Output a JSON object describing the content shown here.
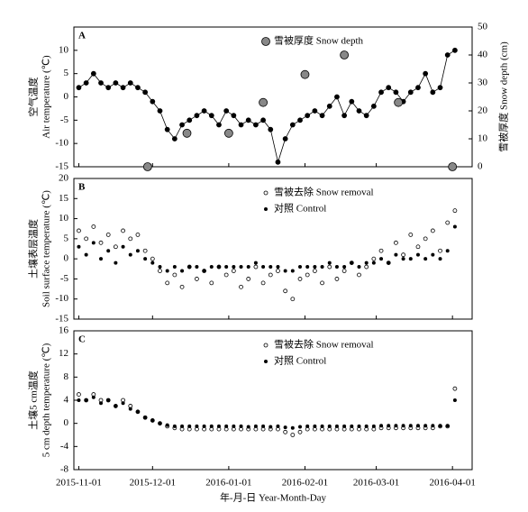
{
  "chart_data": [
    {
      "type": "line",
      "label": "A",
      "ylabel": [
        "空气温度",
        "Air temperature (℃)"
      ],
      "y2label": "雪被厚度 Snow depth (cm)",
      "xlim": [
        "2015-10-30",
        "2016-04-09"
      ],
      "xticks": [
        "2015-11-01",
        "2015-12-01",
        "2016-01-01",
        "2016-02-01",
        "2016-03-01",
        "2016-04-01"
      ],
      "ylim": [
        -15,
        15
      ],
      "yticks": [
        -15,
        -10,
        -5,
        0,
        5,
        10
      ],
      "y2lim": [
        0,
        50
      ],
      "y2ticks": [
        0,
        10,
        20,
        30,
        40,
        50
      ],
      "legend": "upper center",
      "series": [
        {
          "color": "#000000",
          "marker": "open",
          "line": true,
          "x": [
            "2015-11-01",
            "2015-11-04",
            "2015-11-07",
            "2015-11-10",
            "2015-11-13",
            "2015-11-16",
            "2015-11-19",
            "2015-11-22",
            "2015-11-25",
            "2015-11-28",
            "2015-12-01",
            "2015-12-04",
            "2015-12-07",
            "2015-12-10",
            "2015-12-13",
            "2015-12-16",
            "2015-12-19",
            "2015-12-22",
            "2015-12-25",
            "2015-12-28",
            "2015-12-31",
            "2016-01-03",
            "2016-01-06",
            "2016-01-09",
            "2016-01-12",
            "2016-01-15",
            "2016-01-18",
            "2016-01-21",
            "2016-01-24",
            "2016-01-27",
            "2016-01-30",
            "2016-02-02",
            "2016-02-05",
            "2016-02-08",
            "2016-02-11",
            "2016-02-14",
            "2016-02-17",
            "2016-02-20",
            "2016-02-23",
            "2016-02-26",
            "2016-02-29",
            "2016-03-03",
            "2016-03-06",
            "2016-03-09",
            "2016-03-12",
            "2016-03-15",
            "2016-03-18",
            "2016-03-21",
            "2016-03-24",
            "2016-03-27",
            "2016-03-30",
            "2016-04-02"
          ],
          "values": [
            2,
            3,
            5,
            3,
            2,
            3,
            2,
            3,
            2,
            1,
            -1,
            -3,
            -7,
            -9,
            -6,
            -5,
            -4,
            -3,
            -4,
            -6,
            -3,
            -4,
            -6,
            -5,
            -6,
            -5,
            -7,
            -14,
            -9,
            -6,
            -5,
            -4,
            -3,
            -4,
            -2,
            0,
            -4,
            -1,
            -3,
            -4,
            -2,
            1,
            2,
            1,
            -1,
            1,
            2,
            5,
            1,
            2,
            9,
            10
          ]
        },
        {
          "name": "雪被厚度 Snow depth",
          "color": "#888888",
          "marker": "filled-large",
          "axis": "y2",
          "x": [
            "2015-11-29",
            "2015-12-15",
            "2016-01-01",
            "2016-01-15",
            "2016-02-01",
            "2016-02-17",
            "2016-03-10",
            "2016-04-01"
          ],
          "values": [
            0,
            12,
            12,
            23,
            33,
            40,
            23,
            0
          ]
        }
      ]
    },
    {
      "type": "scatter",
      "label": "B",
      "ylabel": [
        "土壤表层温度",
        "Soil surface temperature (℃)"
      ],
      "xlim": [
        "2015-10-30",
        "2016-04-09"
      ],
      "xticks": [
        "2015-11-01",
        "2015-12-01",
        "2016-01-01",
        "2016-02-01",
        "2016-03-01",
        "2016-04-01"
      ],
      "ylim": [
        -15,
        20
      ],
      "yticks": [
        -15,
        -10,
        -5,
        0,
        5,
        10,
        15,
        20
      ],
      "legend": "upper center",
      "x": [
        "2015-11-01",
        "2015-11-04",
        "2015-11-07",
        "2015-11-10",
        "2015-11-13",
        "2015-11-16",
        "2015-11-19",
        "2015-11-22",
        "2015-11-25",
        "2015-11-28",
        "2015-12-01",
        "2015-12-04",
        "2015-12-07",
        "2015-12-10",
        "2015-12-13",
        "2015-12-16",
        "2015-12-19",
        "2015-12-22",
        "2015-12-25",
        "2015-12-28",
        "2015-12-31",
        "2016-01-03",
        "2016-01-06",
        "2016-01-09",
        "2016-01-12",
        "2016-01-15",
        "2016-01-18",
        "2016-01-21",
        "2016-01-24",
        "2016-01-27",
        "2016-01-30",
        "2016-02-02",
        "2016-02-05",
        "2016-02-08",
        "2016-02-11",
        "2016-02-14",
        "2016-02-17",
        "2016-02-20",
        "2016-02-23",
        "2016-02-26",
        "2016-02-29",
        "2016-03-03",
        "2016-03-06",
        "2016-03-09",
        "2016-03-12",
        "2016-03-15",
        "2016-03-18",
        "2016-03-21",
        "2016-03-24",
        "2016-03-27",
        "2016-03-30",
        "2016-04-02"
      ],
      "series": [
        {
          "name": "雪被去除 Snow removal",
          "color": "#000000",
          "marker": "open",
          "values": [
            7,
            5,
            8,
            4,
            6,
            3,
            7,
            5,
            6,
            2,
            0,
            -3,
            -6,
            -4,
            -7,
            -2,
            -5,
            -3,
            -6,
            -2,
            -4,
            -3,
            -7,
            -5,
            -2,
            -6,
            -4,
            -3,
            -8,
            -10,
            -5,
            -4,
            -3,
            -6,
            -2,
            -5,
            -3,
            -1,
            -4,
            -2,
            0,
            2,
            -1,
            4,
            1,
            6,
            3,
            5,
            7,
            2,
            9,
            12
          ]
        },
        {
          "name": "对照 Control",
          "color": "#000000",
          "marker": "filled",
          "values": [
            3,
            1,
            4,
            0,
            2,
            -1,
            3,
            1,
            2,
            0,
            -1,
            -2,
            -3,
            -2,
            -3,
            -2,
            -2,
            -3,
            -2,
            -2,
            -2,
            -2,
            -2,
            -2,
            -1,
            -2,
            -2,
            -2,
            -3,
            -3,
            -2,
            -2,
            -2,
            -2,
            -1,
            -2,
            -2,
            -1,
            -2,
            -1,
            -1,
            0,
            -1,
            1,
            0,
            0,
            1,
            0,
            1,
            0,
            2,
            8
          ]
        }
      ]
    },
    {
      "type": "scatter",
      "label": "C",
      "ylabel": [
        "土壤5 cm温度",
        "5 cm depth temperature (℃)"
      ],
      "xlabel": "年-月-日 Year-Month-Day",
      "xlim": [
        "2015-10-30",
        "2016-04-09"
      ],
      "xticks": [
        "2015-11-01",
        "2015-12-01",
        "2016-01-01",
        "2016-02-01",
        "2016-03-01",
        "2016-04-01"
      ],
      "ylim": [
        -8,
        16
      ],
      "yticks": [
        -8,
        -4,
        0,
        4,
        8,
        12,
        16
      ],
      "legend": "upper center",
      "x": [
        "2015-11-01",
        "2015-11-04",
        "2015-11-07",
        "2015-11-10",
        "2015-11-13",
        "2015-11-16",
        "2015-11-19",
        "2015-11-22",
        "2015-11-25",
        "2015-11-28",
        "2015-12-01",
        "2015-12-04",
        "2015-12-07",
        "2015-12-10",
        "2015-12-13",
        "2015-12-16",
        "2015-12-19",
        "2015-12-22",
        "2015-12-25",
        "2015-12-28",
        "2015-12-31",
        "2016-01-03",
        "2016-01-06",
        "2016-01-09",
        "2016-01-12",
        "2016-01-15",
        "2016-01-18",
        "2016-01-21",
        "2016-01-24",
        "2016-01-27",
        "2016-01-30",
        "2016-02-02",
        "2016-02-05",
        "2016-02-08",
        "2016-02-11",
        "2016-02-14",
        "2016-02-17",
        "2016-02-20",
        "2016-02-23",
        "2016-02-26",
        "2016-02-29",
        "2016-03-03",
        "2016-03-06",
        "2016-03-09",
        "2016-03-12",
        "2016-03-15",
        "2016-03-18",
        "2016-03-21",
        "2016-03-24",
        "2016-03-27",
        "2016-03-30",
        "2016-04-02"
      ],
      "series": [
        {
          "name": "雪被去除 Snow removal",
          "color": "#000000",
          "marker": "open",
          "values": [
            5,
            4,
            5,
            4,
            4,
            3,
            4,
            3,
            2,
            1,
            0.5,
            0,
            -0.5,
            -0.8,
            -1,
            -1,
            -1,
            -1,
            -1,
            -1,
            -1,
            -1,
            -1,
            -1,
            -1,
            -1,
            -1,
            -1,
            -1.5,
            -2,
            -1.5,
            -1,
            -1,
            -1,
            -1,
            -1,
            -1,
            -1,
            -1,
            -1,
            -1,
            -0.8,
            -0.8,
            -0.8,
            -0.8,
            -0.8,
            -0.8,
            -0.8,
            -0.8,
            -0.5,
            -0.5,
            6
          ]
        },
        {
          "name": "对照 Control",
          "color": "#000000",
          "marker": "filled",
          "values": [
            4,
            4,
            4.5,
            3.5,
            4,
            3,
            3.5,
            2.5,
            2,
            1,
            0.5,
            0,
            -0.3,
            -0.5,
            -0.5,
            -0.5,
            -0.5,
            -0.5,
            -0.5,
            -0.5,
            -0.5,
            -0.5,
            -0.5,
            -0.6,
            -0.5,
            -0.5,
            -0.6,
            -0.5,
            -0.7,
            -0.8,
            -0.6,
            -0.5,
            -0.5,
            -0.5,
            -0.5,
            -0.5,
            -0.5,
            -0.5,
            -0.5,
            -0.5,
            -0.5,
            -0.4,
            -0.4,
            -0.4,
            -0.4,
            -0.4,
            -0.4,
            -0.4,
            -0.4,
            -0.4,
            -0.4,
            4
          ]
        }
      ]
    }
  ]
}
